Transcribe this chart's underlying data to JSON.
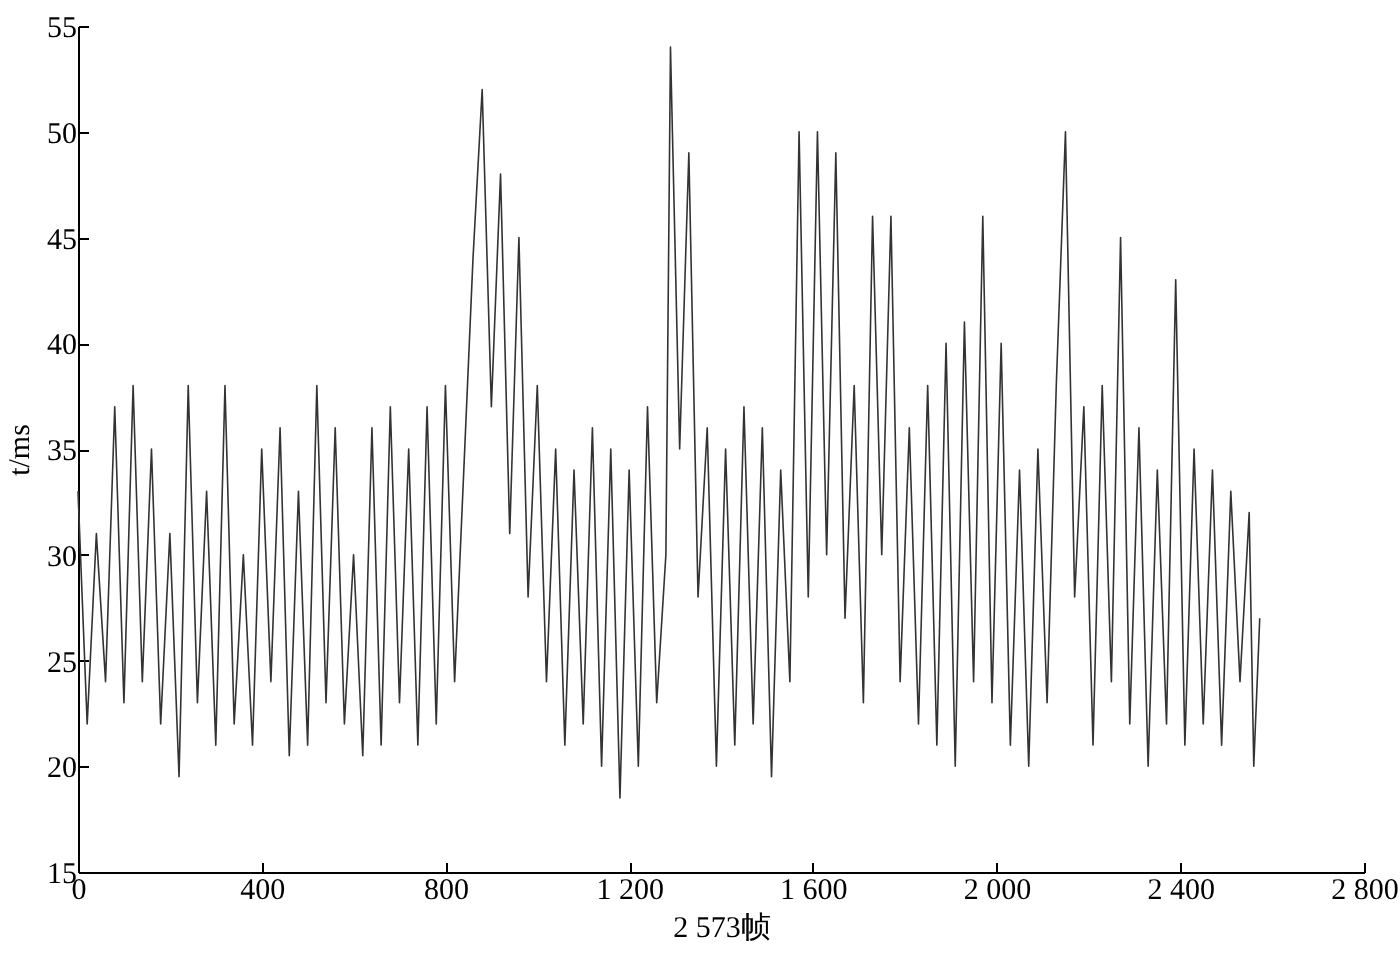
{
  "chart_data": {
    "type": "line",
    "xlabel": "2 573帧",
    "ylabel": "t/ms",
    "color": "#333333",
    "x": [
      0,
      20,
      40,
      60,
      80,
      100,
      120,
      140,
      160,
      180,
      200,
      220,
      240,
      260,
      280,
      300,
      320,
      340,
      360,
      380,
      400,
      420,
      440,
      460,
      480,
      500,
      520,
      540,
      560,
      580,
      600,
      620,
      640,
      660,
      680,
      700,
      720,
      740,
      760,
      780,
      800,
      820,
      840,
      860,
      880,
      900,
      920,
      940,
      960,
      980,
      1000,
      1020,
      1040,
      1060,
      1080,
      1100,
      1120,
      1140,
      1160,
      1180,
      1200,
      1220,
      1240,
      1260,
      1280,
      1290,
      1310,
      1330,
      1350,
      1370,
      1390,
      1410,
      1430,
      1450,
      1470,
      1490,
      1510,
      1530,
      1550,
      1570,
      1590,
      1610,
      1630,
      1650,
      1670,
      1690,
      1710,
      1730,
      1750,
      1770,
      1790,
      1810,
      1830,
      1850,
      1870,
      1890,
      1910,
      1930,
      1950,
      1970,
      1990,
      2010,
      2030,
      2050,
      2070,
      2090,
      2110,
      2130,
      2150,
      2170,
      2190,
      2210,
      2230,
      2250,
      2270,
      2290,
      2310,
      2330,
      2350,
      2370,
      2390,
      2410,
      2430,
      2450,
      2470,
      2490,
      2510,
      2530,
      2550,
      2560,
      2573
    ],
    "values": [
      33,
      22,
      31,
      24,
      37,
      23,
      38,
      24,
      35,
      22,
      31,
      19.5,
      38,
      23,
      33,
      21,
      38,
      22,
      30,
      21,
      35,
      24,
      36,
      20.5,
      33,
      21,
      38,
      23,
      36,
      22,
      30,
      20.5,
      36,
      21,
      37,
      23,
      35,
      21,
      37,
      22,
      38,
      24,
      34,
      44,
      52,
      37,
      48,
      31,
      45,
      28,
      38,
      24,
      35,
      21,
      34,
      22,
      36,
      20,
      35,
      18.5,
      34,
      20,
      37,
      23,
      30,
      54,
      35,
      49,
      28,
      36,
      20,
      35,
      21,
      37,
      22,
      36,
      19.5,
      34,
      24,
      50,
      28,
      50,
      30,
      49,
      27,
      38,
      23,
      46,
      30,
      46,
      24,
      36,
      22,
      38,
      21,
      40,
      20,
      41,
      24,
      46,
      23,
      40,
      21,
      34,
      20,
      35,
      23,
      38,
      50,
      28,
      37,
      21,
      38,
      24,
      45,
      22,
      36,
      20,
      34,
      22,
      43,
      21,
      35,
      22,
      34,
      21,
      33,
      24,
      32,
      20,
      27
    ],
    "xlim": [
      0,
      2800
    ],
    "xticks": [
      0,
      {
        "value": 400,
        "label": "400"
      },
      {
        "value": 800,
        "label": "800"
      },
      {
        "value": 1200,
        "label": "1 200"
      },
      {
        "value": 1600,
        "label": "1 600"
      },
      {
        "value": 2000,
        "label": "2 000"
      },
      {
        "value": 2400,
        "label": "2 400"
      },
      {
        "value": 2800,
        "label": "2 800"
      }
    ],
    "ylim": [
      15,
      55
    ],
    "yticks": [
      15,
      20,
      25,
      30,
      35,
      40,
      45,
      50,
      55
    ]
  }
}
